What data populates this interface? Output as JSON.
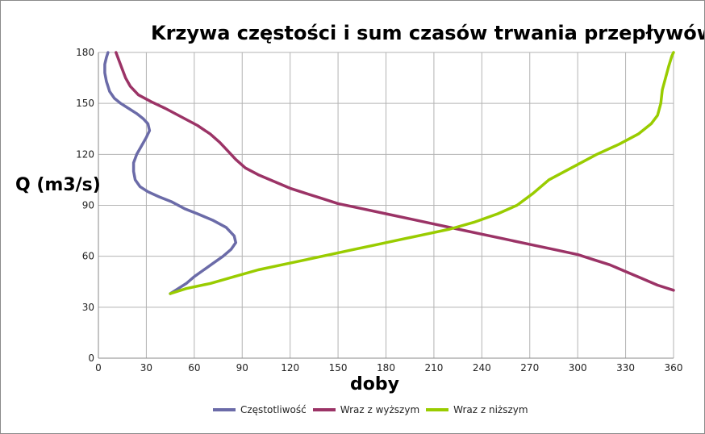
{
  "chart_data": {
    "type": "line",
    "title": "Krzywa częstości i sum czasów trwania przepływów",
    "xlabel": "doby",
    "ylabel": "Q (m3/s)",
    "xlim": [
      0,
      360
    ],
    "ylim": [
      0,
      180
    ],
    "xticks": [
      "0",
      "30",
      "60",
      "90",
      "120",
      "150",
      "180",
      "210",
      "240",
      "270",
      "300",
      "330",
      "360"
    ],
    "yticks": [
      "0",
      "30",
      "60",
      "90",
      "120",
      "150",
      "180"
    ],
    "grid": true,
    "legend_position": "bottom",
    "series": [
      {
        "name": "Częstotliwość",
        "color": "#6b6ba8",
        "points": [
          [
            45,
            38
          ],
          [
            50,
            41
          ],
          [
            55,
            44
          ],
          [
            60,
            48
          ],
          [
            66,
            52
          ],
          [
            72,
            56
          ],
          [
            78,
            60
          ],
          [
            83,
            64
          ],
          [
            86,
            68
          ],
          [
            85,
            72
          ],
          [
            80,
            77
          ],
          [
            72,
            81
          ],
          [
            62,
            85
          ],
          [
            54,
            88
          ],
          [
            46,
            92
          ],
          [
            38,
            95
          ],
          [
            31,
            98
          ],
          [
            26,
            101
          ],
          [
            23,
            105
          ],
          [
            22,
            110
          ],
          [
            22,
            115
          ],
          [
            24,
            120
          ],
          [
            27,
            125
          ],
          [
            30,
            130
          ],
          [
            32,
            134
          ],
          [
            31,
            138
          ],
          [
            28,
            141
          ],
          [
            24,
            144
          ],
          [
            19,
            147
          ],
          [
            14,
            150
          ],
          [
            10,
            153
          ],
          [
            7,
            157
          ],
          [
            5,
            163
          ],
          [
            4,
            168
          ],
          [
            4,
            173
          ],
          [
            5,
            177
          ],
          [
            6,
            180
          ]
        ]
      },
      {
        "name": "Wraz z wyższym",
        "color": "#9b3366",
        "points": [
          [
            360,
            40
          ],
          [
            350,
            43
          ],
          [
            340,
            47
          ],
          [
            330,
            51
          ],
          [
            320,
            55
          ],
          [
            310,
            58
          ],
          [
            300,
            61
          ],
          [
            285,
            64
          ],
          [
            270,
            67
          ],
          [
            255,
            70
          ],
          [
            240,
            73
          ],
          [
            225,
            76
          ],
          [
            210,
            79
          ],
          [
            195,
            82
          ],
          [
            180,
            85
          ],
          [
            165,
            88
          ],
          [
            150,
            91
          ],
          [
            140,
            94
          ],
          [
            130,
            97
          ],
          [
            120,
            100
          ],
          [
            110,
            104
          ],
          [
            100,
            108
          ],
          [
            92,
            112
          ],
          [
            86,
            117
          ],
          [
            81,
            122
          ],
          [
            76,
            127
          ],
          [
            70,
            132
          ],
          [
            62,
            137
          ],
          [
            52,
            142
          ],
          [
            42,
            147
          ],
          [
            33,
            151
          ],
          [
            25,
            155
          ],
          [
            20,
            160
          ],
          [
            17,
            165
          ],
          [
            15,
            170
          ],
          [
            13,
            175
          ],
          [
            11,
            180
          ]
        ]
      },
      {
        "name": "Wraz z niższym",
        "color": "#99cc00",
        "points": [
          [
            45,
            38
          ],
          [
            55,
            41
          ],
          [
            70,
            44
          ],
          [
            85,
            48
          ],
          [
            100,
            52
          ],
          [
            115,
            55
          ],
          [
            130,
            58
          ],
          [
            145,
            61
          ],
          [
            160,
            64
          ],
          [
            175,
            67
          ],
          [
            190,
            70
          ],
          [
            205,
            73
          ],
          [
            220,
            76
          ],
          [
            235,
            80
          ],
          [
            250,
            85
          ],
          [
            262,
            90
          ],
          [
            272,
            97
          ],
          [
            282,
            105
          ],
          [
            296,
            112
          ],
          [
            312,
            120
          ],
          [
            326,
            126
          ],
          [
            338,
            132
          ],
          [
            346,
            138
          ],
          [
            350,
            143
          ],
          [
            352,
            150
          ],
          [
            353,
            158
          ],
          [
            355,
            165
          ],
          [
            357,
            172
          ],
          [
            359,
            178
          ],
          [
            360,
            180
          ]
        ]
      }
    ]
  }
}
